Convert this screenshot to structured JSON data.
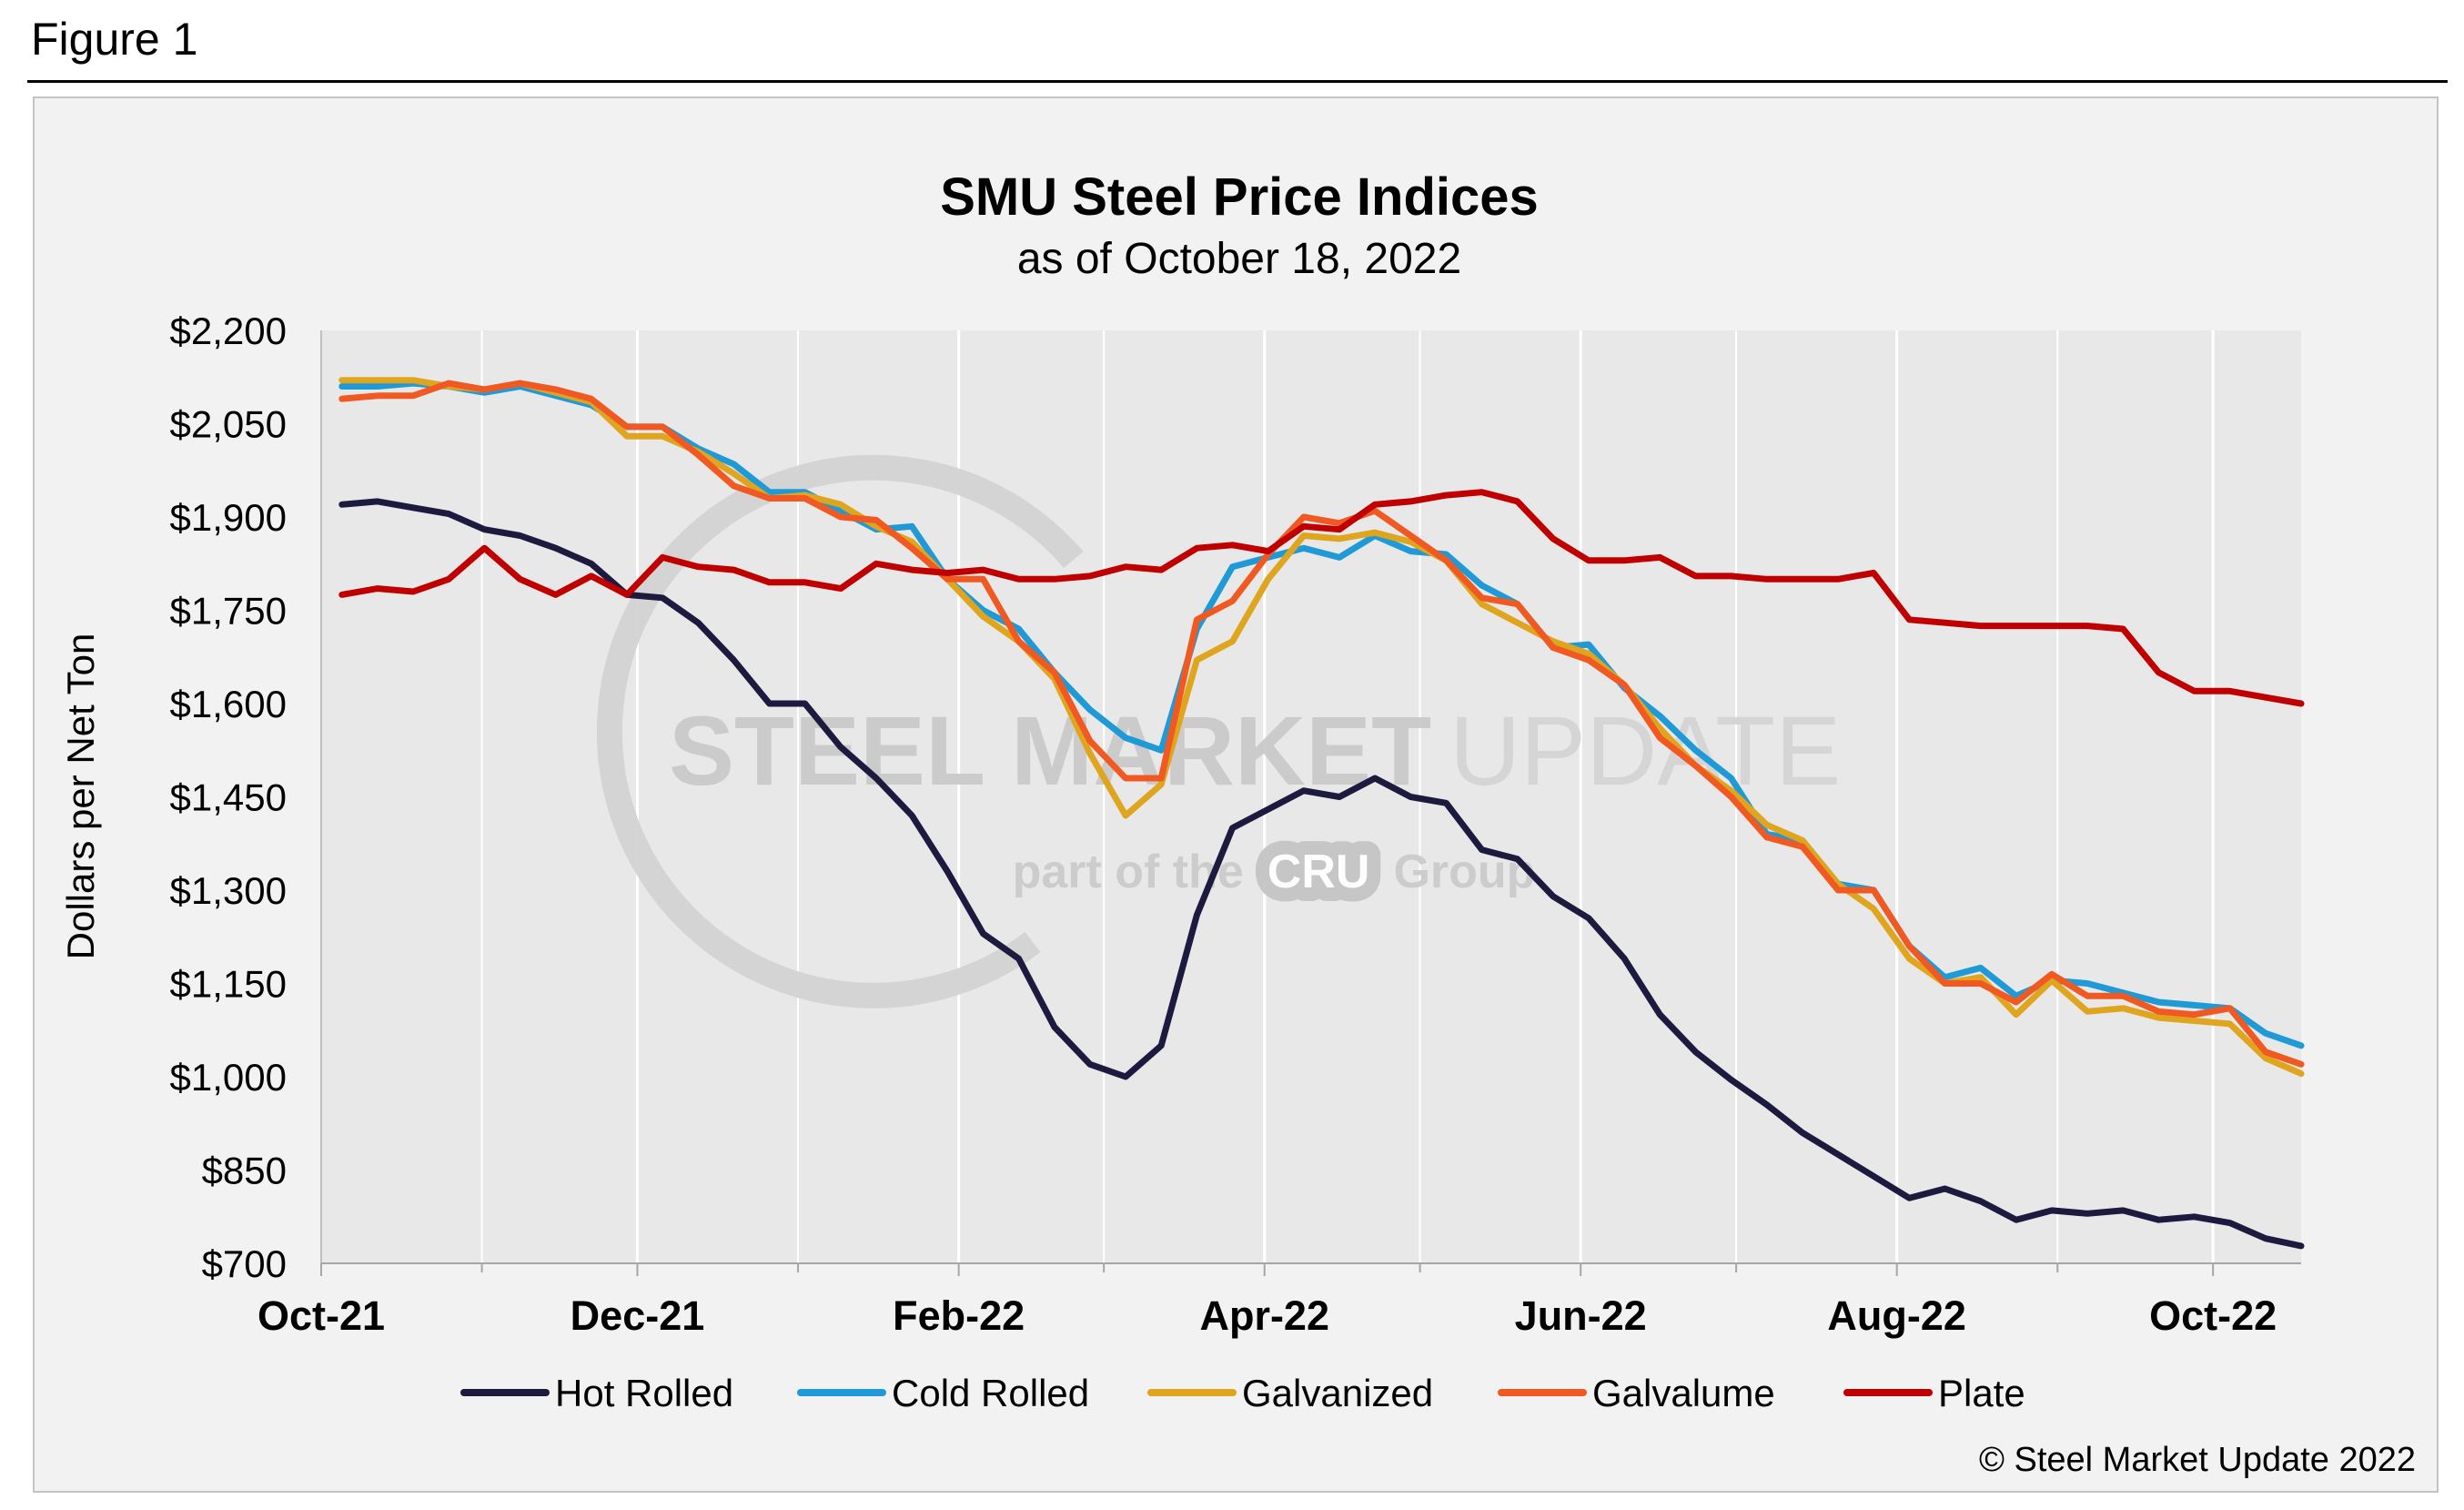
{
  "figure_label": "Figure 1",
  "copyright": "© Steel Market Update 2022",
  "watermark": {
    "line1_bold": "STEEL MARKET",
    "line1_light": "UPDATE",
    "line2_prefix": "part of the",
    "badge": "CRU",
    "line2_suffix": "Group"
  },
  "chart_data": {
    "type": "line",
    "title": "SMU Steel Price Indices",
    "subtitle": "as of October 18, 2022",
    "ylabel": "Dollars per Net Ton",
    "xlabel": "",
    "ylim": [
      700,
      2200
    ],
    "yticks": [
      700,
      850,
      1000,
      1150,
      1300,
      1450,
      1600,
      1750,
      1900,
      2050,
      2200
    ],
    "ytick_labels": [
      "$700",
      "$850",
      "$1,000",
      "$1,150",
      "$1,300",
      "$1,450",
      "$1,600",
      "$1,750",
      "$1,900",
      "$2,050",
      "$2,200"
    ],
    "x_start": "2021-10-05",
    "x_end": "2022-10-18",
    "major_ticks": [
      {
        "date": "2021-10-01",
        "label": "Oct-21"
      },
      {
        "date": "2021-12-01",
        "label": "Dec-21"
      },
      {
        "date": "2022-02-01",
        "label": "Feb-22"
      },
      {
        "date": "2022-04-01",
        "label": "Apr-22"
      },
      {
        "date": "2022-06-01",
        "label": "Jun-22"
      },
      {
        "date": "2022-08-01",
        "label": "Aug-22"
      },
      {
        "date": "2022-10-01",
        "label": "Oct-22"
      }
    ],
    "minor_ticks": [
      "2021-11-01",
      "2022-01-01",
      "2022-03-01",
      "2022-05-01",
      "2022-07-01",
      "2022-09-01"
    ],
    "grid": "vertical",
    "legend_position": "bottom",
    "series": [
      {
        "name": "Hot Rolled",
        "color": "#1c1a3e",
        "values": [
          1920,
          1925,
          1915,
          1905,
          1880,
          1870,
          1850,
          1825,
          1775,
          1770,
          1730,
          1670,
          1600,
          1600,
          1530,
          1480,
          1420,
          1330,
          1230,
          1190,
          1080,
          1020,
          1000,
          1050,
          1260,
          1400,
          1430,
          1460,
          1450,
          1480,
          1450,
          1440,
          1365,
          1350,
          1290,
          1255,
          1190,
          1100,
          1040,
          995,
          955,
          910,
          875,
          840,
          805,
          820,
          800,
          770,
          785,
          780,
          785,
          770,
          775,
          765,
          740,
          728
        ]
      },
      {
        "name": "Cold Rolled",
        "color": "#1f9ad6",
        "values": [
          2110,
          2110,
          2115,
          2110,
          2100,
          2110,
          2095,
          2080,
          2045,
          2045,
          2010,
          1985,
          1940,
          1940,
          1910,
          1880,
          1885,
          1800,
          1750,
          1720,
          1650,
          1590,
          1545,
          1525,
          1720,
          1820,
          1835,
          1850,
          1835,
          1870,
          1845,
          1840,
          1790,
          1760,
          1690,
          1695,
          1625,
          1580,
          1525,
          1480,
          1390,
          1380,
          1310,
          1300,
          1210,
          1160,
          1175,
          1130,
          1155,
          1150,
          1135,
          1120,
          1115,
          1110,
          1070,
          1050
        ]
      },
      {
        "name": "Galvanized",
        "color": "#e0a51f",
        "values": [
          2120,
          2120,
          2120,
          2110,
          2105,
          2115,
          2100,
          2085,
          2030,
          2030,
          2005,
          1970,
          1930,
          1935,
          1920,
          1885,
          1860,
          1800,
          1740,
          1700,
          1640,
          1520,
          1420,
          1470,
          1670,
          1700,
          1800,
          1870,
          1865,
          1875,
          1860,
          1830,
          1760,
          1730,
          1700,
          1680,
          1630,
          1560,
          1500,
          1460,
          1405,
          1380,
          1310,
          1270,
          1190,
          1150,
          1160,
          1100,
          1155,
          1105,
          1110,
          1095,
          1090,
          1085,
          1030,
          1005
        ]
      },
      {
        "name": "Galvalume",
        "color": "#f05a22",
        "values": [
          2090,
          2095,
          2095,
          2115,
          2105,
          2115,
          2105,
          2090,
          2045,
          2045,
          2000,
          1950,
          1930,
          1930,
          1900,
          1895,
          1850,
          1800,
          1800,
          1700,
          1650,
          1540,
          1480,
          1480,
          1735,
          1765,
          1840,
          1900,
          1890,
          1910,
          1870,
          1830,
          1770,
          1760,
          1690,
          1670,
          1630,
          1545,
          1500,
          1450,
          1385,
          1370,
          1300,
          1300,
          1210,
          1150,
          1150,
          1120,
          1165,
          1130,
          1130,
          1105,
          1100,
          1110,
          1040,
          1020
        ]
      },
      {
        "name": "Plate",
        "color": "#c00000",
        "values": [
          1775,
          1785,
          1780,
          1800,
          1850,
          1800,
          1775,
          1805,
          1775,
          1835,
          1820,
          1815,
          1795,
          1795,
          1785,
          1825,
          1815,
          1810,
          1815,
          1800,
          1800,
          1805,
          1820,
          1815,
          1850,
          1855,
          1845,
          1885,
          1880,
          1920,
          1925,
          1935,
          1940,
          1925,
          1865,
          1830,
          1830,
          1835,
          1805,
          1805,
          1800,
          1800,
          1800,
          1810,
          1735,
          1730,
          1725,
          1725,
          1725,
          1725,
          1720,
          1650,
          1620,
          1620,
          1610,
          1600
        ]
      }
    ]
  }
}
